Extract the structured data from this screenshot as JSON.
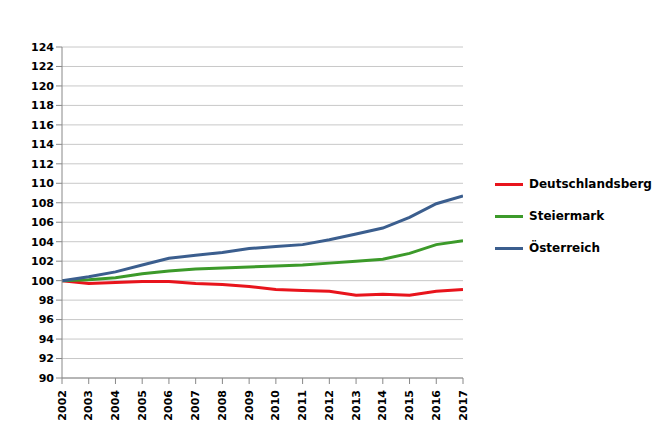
{
  "chart_data": {
    "type": "line",
    "x": [
      2002,
      2003,
      2004,
      2005,
      2006,
      2007,
      2008,
      2009,
      2010,
      2011,
      2012,
      2013,
      2014,
      2015,
      2016,
      2017
    ],
    "xlim": [
      2002,
      2017
    ],
    "xticks": [
      2002,
      2003,
      2004,
      2005,
      2006,
      2007,
      2008,
      2009,
      2010,
      2011,
      2012,
      2013,
      2014,
      2015,
      2016,
      2017
    ],
    "ylim": [
      90,
      124
    ],
    "yticks": [
      90,
      92,
      94,
      96,
      98,
      100,
      102,
      104,
      106,
      108,
      110,
      112,
      114,
      116,
      118,
      120,
      122,
      124
    ],
    "grid": true,
    "legend": "right",
    "series": [
      {
        "name": "Deutschlandsberg",
        "color": "#e8141c",
        "values": [
          100,
          99.7,
          99.8,
          99.9,
          99.9,
          99.7,
          99.6,
          99.4,
          99.1,
          99.0,
          98.9,
          98.5,
          98.6,
          98.5,
          98.9,
          99.1
        ]
      },
      {
        "name": "Steiermark",
        "color": "#3c9a2a",
        "values": [
          100,
          100.1,
          100.3,
          100.7,
          101.0,
          101.2,
          101.3,
          101.4,
          101.5,
          101.6,
          101.8,
          102.0,
          102.2,
          102.8,
          103.7,
          104.1
        ]
      },
      {
        "name": "Österreich",
        "color": "#3b5e8e",
        "values": [
          100,
          100.4,
          100.9,
          101.6,
          102.3,
          102.6,
          102.9,
          103.3,
          103.5,
          103.7,
          104.2,
          104.8,
          105.4,
          106.5,
          107.9,
          108.7
        ]
      }
    ]
  }
}
